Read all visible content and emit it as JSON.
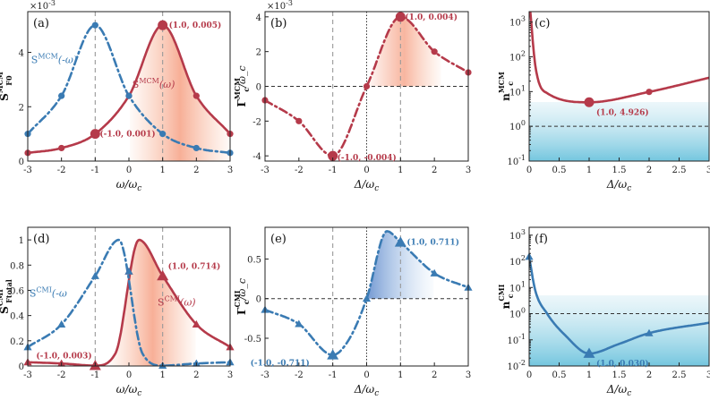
{
  "colors": {
    "red": "#b53a4a",
    "blue": "#3a7bb3",
    "lightblue": "#3aa6c9"
  },
  "chart_data": [
    {
      "id": "a",
      "type": "line",
      "panel_label": "(a)",
      "xlabel": "ω/ω_c",
      "ylabel": "S_F0^MCM",
      "multiplier": "×10^-3",
      "xlim": [
        -3,
        3
      ],
      "ylim": [
        0,
        0.0055
      ],
      "xticks": [
        -3,
        -2,
        -1,
        0,
        1,
        2,
        3
      ],
      "yticks": [
        0,
        0.002,
        0.004
      ],
      "ytick_labels": [
        "0",
        "2",
        "4"
      ],
      "vlines": [
        -1,
        1
      ],
      "series": [
        {
          "name": "S^MCM(ω)",
          "label_main": "S",
          "label_sup": "MCM",
          "label_tail": "(ω)",
          "color": "#b53a4a",
          "style": "solid",
          "marker": "circle",
          "x": [
            -3,
            -2,
            -1,
            0,
            1,
            2,
            3
          ],
          "y": [
            0.0003,
            0.00048,
            0.001,
            0.0024,
            0.005,
            0.0024,
            0.001
          ],
          "shade": true
        },
        {
          "name": "S^MCM(-ω)",
          "label_main": "S",
          "label_sup": "MCM",
          "label_tail": "(-ω)",
          "color": "#3a7bb3",
          "style": "dashdot",
          "marker": "circle",
          "x": [
            -3,
            -2,
            -1,
            0,
            1,
            2,
            3
          ],
          "y": [
            0.001,
            0.0024,
            0.005,
            0.0024,
            0.001,
            0.00048,
            0.0003
          ]
        }
      ],
      "annotations": [
        {
          "text": "(1.0, 0.005)",
          "x": 1,
          "y": 0.005,
          "color": "#b53a4a"
        },
        {
          "text": "(-1.0, 0.001)",
          "x": -1,
          "y": 0.001,
          "color": "#b53a4a"
        }
      ]
    },
    {
      "id": "b",
      "type": "line",
      "panel_label": "(b)",
      "xlabel": "Δ/ω_c",
      "ylabel": "Γ_c^MCM/ω_c",
      "multiplier": "×10^-3",
      "xlim": [
        -3,
        3
      ],
      "ylim": [
        -0.0043,
        0.0043
      ],
      "xticks": [
        -3,
        -2,
        -1,
        0,
        1,
        2,
        3
      ],
      "yticks": [
        -0.004,
        -0.002,
        0,
        0.002,
        0.004
      ],
      "ytick_labels": [
        "-4",
        "-2",
        "0",
        "2",
        "4"
      ],
      "vlines": [
        -1,
        1
      ],
      "hline": 0,
      "vline_dotted": 0,
      "series": [
        {
          "name": "Γ^MCM",
          "color": "#b53a4a",
          "style": "dashdot",
          "marker": "circle",
          "x": [
            -3,
            -2,
            -1,
            0,
            1,
            2,
            3
          ],
          "y": [
            -0.0008,
            -0.002,
            -0.004,
            0,
            0.004,
            0.002,
            0.0008
          ],
          "shade": true
        }
      ],
      "annotations": [
        {
          "text": "(1.0, 0.004)",
          "x": 1,
          "y": 0.004,
          "color": "#b53a4a"
        },
        {
          "text": "(-1.0, -0.004)",
          "x": -1,
          "y": -0.004,
          "color": "#b53a4a"
        }
      ]
    },
    {
      "id": "c",
      "type": "line",
      "panel_label": "(c)",
      "xlabel": "Δ/ω_c",
      "ylabel": "n_c^MCM",
      "yscale": "log",
      "xlim": [
        0,
        3
      ],
      "ylim": [
        0.1,
        2000
      ],
      "xticks": [
        0,
        0.5,
        1,
        1.5,
        2,
        2.5,
        3
      ],
      "xtick_labels": [
        "0",
        "0.5",
        "1",
        "1.5",
        "2",
        "2.5",
        "3"
      ],
      "yticks": [
        0.1,
        1,
        10,
        100,
        1000
      ],
      "ytick_labels": [
        "10^-1",
        "10^0",
        "10^1",
        "10^2",
        "10^3"
      ],
      "hline": 1,
      "band": [
        0.1,
        5
      ],
      "series": [
        {
          "name": "n^MCM",
          "color": "#b53a4a",
          "style": "solid",
          "marker": "circle",
          "x": [
            1,
            2
          ],
          "y": [
            4.926,
            9.8
          ]
        }
      ],
      "annotations": [
        {
          "text": "(1.0, 4.926)",
          "x": 1,
          "y": 4.926,
          "color": "#b53a4a"
        }
      ]
    },
    {
      "id": "d",
      "type": "line",
      "panel_label": "(d)",
      "xlabel": "ω/ω_c",
      "ylabel": "S_Ftotal^CMI",
      "xlim": [
        -3,
        3
      ],
      "ylim": [
        0,
        1.1
      ],
      "xticks": [
        -3,
        -2,
        -1,
        0,
        1,
        2,
        3
      ],
      "yticks": [
        0,
        0.2,
        0.4,
        0.6,
        0.8,
        1
      ],
      "ytick_labels": [
        "0",
        "0.2",
        "0.4",
        "0.6",
        "0.8",
        "1"
      ],
      "vlines": [
        -1,
        1
      ],
      "series": [
        {
          "name": "S^CMI(ω)",
          "label_main": "S",
          "label_sup": "CMI",
          "label_tail": "(ω)",
          "color": "#b53a4a",
          "style": "solid",
          "marker": "triangle",
          "x": [
            -3,
            -2,
            -1,
            0,
            1,
            2,
            3
          ],
          "y": [
            0.03,
            0.02,
            0.003,
            0.75,
            0.714,
            0.33,
            0.15
          ],
          "shade": true
        },
        {
          "name": "S^CMI(-ω)",
          "label_main": "S",
          "label_sup": "CMI",
          "label_tail": "(-ω",
          "color": "#3a7bb3",
          "style": "dashdot",
          "marker": "triangle",
          "x": [
            -3,
            -2,
            -1,
            0,
            1,
            2,
            3
          ],
          "y": [
            0.15,
            0.33,
            0.714,
            0.75,
            0.003,
            0.02,
            0.03
          ]
        }
      ],
      "annotations": [
        {
          "text": "(1.0, 0.714)",
          "x": 1,
          "y": 0.714,
          "color": "#b53a4a"
        },
        {
          "text": "(-1.0, 0.003)",
          "x": -1,
          "y": 0.003,
          "color": "#b53a4a"
        }
      ]
    },
    {
      "id": "e",
      "type": "line",
      "panel_label": "(e)",
      "xlabel": "Δ/ω_c",
      "ylabel": "Γ_c^CMI/ω_c",
      "xlim": [
        -3,
        3
      ],
      "ylim": [
        -0.85,
        0.9
      ],
      "xticks": [
        -3,
        -2,
        -1,
        0,
        1,
        2,
        3
      ],
      "yticks": [
        -0.5,
        0,
        0.5
      ],
      "ytick_labels": [
        "-0.5",
        "0",
        "0.5"
      ],
      "vlines": [
        -1,
        1
      ],
      "hline": 0,
      "vline_dotted": 0,
      "series": [
        {
          "name": "Γ^CMI",
          "color": "#3a7bb3",
          "style": "dashdot",
          "marker": "triangle",
          "x": [
            -3,
            -2,
            -1,
            0,
            1,
            2,
            3
          ],
          "y": [
            -0.14,
            -0.32,
            -0.711,
            0,
            0.711,
            0.32,
            0.14
          ],
          "shade": true
        }
      ],
      "annotations": [
        {
          "text": "(1.0, 0.711)",
          "x": 1,
          "y": 0.711,
          "color": "#3a7bb3"
        },
        {
          "text": "(-1.0, -0.711)",
          "x": -1,
          "y": -0.711,
          "color": "#3a7bb3"
        }
      ]
    },
    {
      "id": "f",
      "type": "line",
      "panel_label": "(f)",
      "xlabel": "Δ/ω_c",
      "ylabel": "n_c^CMI",
      "yscale": "log",
      "xlim": [
        0,
        3
      ],
      "ylim": [
        0.01,
        2000
      ],
      "xticks": [
        0,
        0.5,
        1,
        1.5,
        2,
        2.5,
        3
      ],
      "xtick_labels": [
        "0",
        "0.5",
        "1",
        "1.5",
        "2",
        "2.5",
        "3"
      ],
      "yticks": [
        0.01,
        0.1,
        1,
        10,
        100,
        1000
      ],
      "ytick_labels": [
        "10^-2",
        "10^-1",
        "10^0",
        "10^1",
        "10^2",
        "10^3"
      ],
      "hline": 1,
      "band": [
        0.01,
        5
      ],
      "series": [
        {
          "name": "n^CMI",
          "color": "#3a7bb3",
          "style": "solid",
          "marker": "triangle",
          "x": [
            0,
            1,
            2
          ],
          "y": [
            150,
            0.03,
            0.18
          ]
        }
      ],
      "annotations": [
        {
          "text": "(1.0, 0.030)",
          "x": 1,
          "y": 0.03,
          "color": "#3a7bb3"
        }
      ]
    }
  ]
}
